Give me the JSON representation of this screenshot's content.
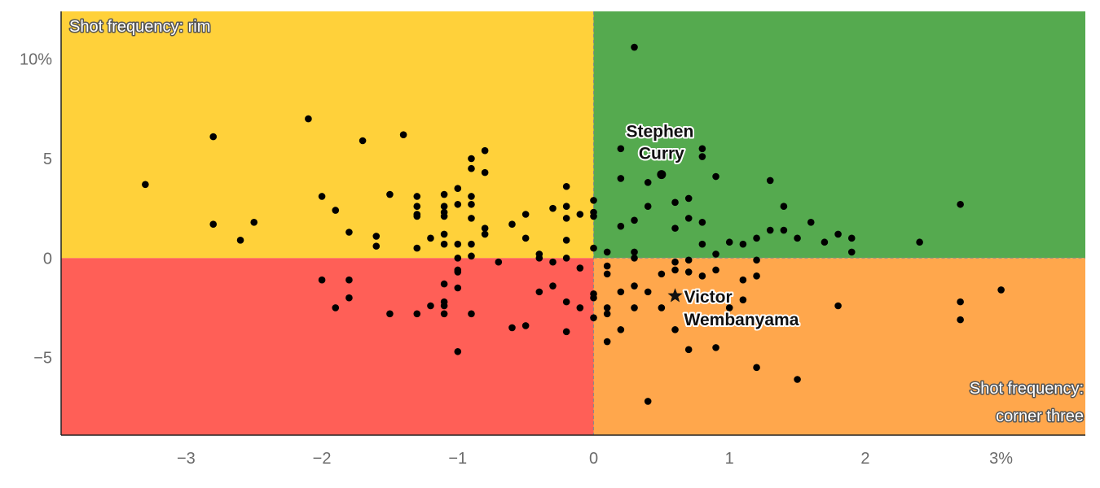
{
  "chart_data": {
    "type": "scatter",
    "xlim": [
      -3.92,
      3.62
    ],
    "ylim": [
      -8.9,
      12.4
    ],
    "x_ticks": [
      -3,
      -2,
      -1,
      0,
      1,
      2,
      3
    ],
    "x_tick_labels": [
      "−3",
      "−2",
      "−1",
      "0",
      "1",
      "2",
      "3%"
    ],
    "y_ticks": [
      -5,
      0,
      5,
      10
    ],
    "y_tick_labels": [
      "−5",
      "0",
      "5",
      "10%"
    ],
    "quadrant_colors": {
      "top_left": "#ffd13a",
      "top_right": "#55aa4f",
      "bottom_left": "#ff5f57",
      "bottom_right": "#ffa74c"
    },
    "corner_labels": {
      "top_left": "Shot frequency: rim",
      "bottom_right_line1": "Shot frequency:",
      "bottom_right_line2": "corner three"
    },
    "highlights": [
      {
        "name_line1": "Stephen",
        "name_line2": "Curry",
        "x": 0.5,
        "y": 4.2,
        "marker": "circle"
      },
      {
        "name_line1": "Victor",
        "name_line2": "Wembanyama",
        "x": 0.6,
        "y": -1.9,
        "marker": "star"
      }
    ],
    "points": [
      [
        -3.3,
        3.7
      ],
      [
        -2.8,
        6.1
      ],
      [
        -2.8,
        1.7
      ],
      [
        -2.6,
        0.9
      ],
      [
        -2.5,
        1.8
      ],
      [
        -2.1,
        7.0
      ],
      [
        -2.0,
        3.1
      ],
      [
        -2.0,
        -1.1
      ],
      [
        -1.9,
        2.4
      ],
      [
        -1.9,
        -2.5
      ],
      [
        -1.8,
        1.3
      ],
      [
        -1.8,
        -1.1
      ],
      [
        -1.8,
        -2.0
      ],
      [
        -1.7,
        5.9
      ],
      [
        -1.6,
        1.1
      ],
      [
        -1.6,
        0.6
      ],
      [
        -1.5,
        3.2
      ],
      [
        -1.5,
        -2.8
      ],
      [
        -1.4,
        6.2
      ],
      [
        -1.3,
        3.1
      ],
      [
        -1.3,
        2.6
      ],
      [
        -1.3,
        2.2
      ],
      [
        -1.3,
        2.1
      ],
      [
        -1.3,
        0.5
      ],
      [
        -1.3,
        -2.8
      ],
      [
        -1.2,
        1.0
      ],
      [
        -1.2,
        -2.4
      ],
      [
        -1.1,
        3.2
      ],
      [
        -1.1,
        2.6
      ],
      [
        -1.1,
        2.3
      ],
      [
        -1.1,
        2.1
      ],
      [
        -1.1,
        1.2
      ],
      [
        -1.1,
        0.7
      ],
      [
        -1.1,
        -1.3
      ],
      [
        -1.1,
        -2.2
      ],
      [
        -1.1,
        -2.4
      ],
      [
        -1.1,
        -2.8
      ],
      [
        -1.0,
        3.5
      ],
      [
        -1.0,
        2.7
      ],
      [
        -1.0,
        0.7
      ],
      [
        -1.0,
        0.0
      ],
      [
        -1.0,
        -0.6
      ],
      [
        -1.0,
        -0.7
      ],
      [
        -1.0,
        -1.5
      ],
      [
        -1.0,
        -4.7
      ],
      [
        -0.9,
        5.0
      ],
      [
        -0.9,
        4.5
      ],
      [
        -0.9,
        3.1
      ],
      [
        -0.9,
        2.7
      ],
      [
        -0.9,
        2.0
      ],
      [
        -0.9,
        0.7
      ],
      [
        -0.9,
        0.1
      ],
      [
        -0.9,
        -2.8
      ],
      [
        -0.8,
        5.4
      ],
      [
        -0.8,
        4.3
      ],
      [
        -0.8,
        1.5
      ],
      [
        -0.8,
        1.2
      ],
      [
        -0.7,
        -0.2
      ],
      [
        -0.6,
        1.7
      ],
      [
        -0.6,
        -3.5
      ],
      [
        -0.5,
        2.2
      ],
      [
        -0.5,
        1.0
      ],
      [
        -0.5,
        -3.4
      ],
      [
        -0.4,
        0.2
      ],
      [
        -0.4,
        0.0
      ],
      [
        -0.4,
        -1.7
      ],
      [
        -0.3,
        2.5
      ],
      [
        -0.3,
        -0.2
      ],
      [
        -0.3,
        -1.4
      ],
      [
        -0.2,
        3.6
      ],
      [
        -0.2,
        2.6
      ],
      [
        -0.2,
        2.0
      ],
      [
        -0.2,
        0.9
      ],
      [
        -0.2,
        0.0
      ],
      [
        -0.2,
        -2.2
      ],
      [
        -0.2,
        -3.7
      ],
      [
        -0.1,
        2.2
      ],
      [
        -0.1,
        -0.5
      ],
      [
        -0.1,
        -2.5
      ],
      [
        0.0,
        2.9
      ],
      [
        0.0,
        2.3
      ],
      [
        0.0,
        2.1
      ],
      [
        0.0,
        0.5
      ],
      [
        0.0,
        -1.8
      ],
      [
        0.0,
        -2.0
      ],
      [
        0.0,
        -3.0
      ],
      [
        0.1,
        0.3
      ],
      [
        0.1,
        -0.4
      ],
      [
        0.1,
        -0.8
      ],
      [
        0.1,
        -2.5
      ],
      [
        0.1,
        -2.8
      ],
      [
        0.1,
        -4.2
      ],
      [
        0.2,
        5.5
      ],
      [
        0.2,
        4.0
      ],
      [
        0.2,
        1.6
      ],
      [
        0.2,
        -1.7
      ],
      [
        0.2,
        -3.6
      ],
      [
        0.3,
        10.6
      ],
      [
        0.3,
        1.9
      ],
      [
        0.3,
        0.3
      ],
      [
        0.3,
        0.0
      ],
      [
        0.3,
        -1.4
      ],
      [
        0.3,
        -2.5
      ],
      [
        0.4,
        3.8
      ],
      [
        0.4,
        2.6
      ],
      [
        0.4,
        -1.7
      ],
      [
        0.4,
        -7.2
      ],
      [
        0.5,
        4.2
      ],
      [
        0.5,
        -0.8
      ],
      [
        0.5,
        -2.5
      ],
      [
        0.6,
        2.8
      ],
      [
        0.6,
        1.5
      ],
      [
        0.6,
        -0.2
      ],
      [
        0.6,
        -0.6
      ],
      [
        0.6,
        -3.6
      ],
      [
        0.7,
        3.0
      ],
      [
        0.7,
        2.0
      ],
      [
        0.7,
        -0.1
      ],
      [
        0.7,
        -0.7
      ],
      [
        0.7,
        -4.6
      ],
      [
        0.8,
        5.5
      ],
      [
        0.8,
        5.1
      ],
      [
        0.8,
        1.8
      ],
      [
        0.8,
        0.7
      ],
      [
        0.8,
        -0.9
      ],
      [
        0.9,
        4.1
      ],
      [
        0.9,
        0.2
      ],
      [
        0.9,
        -0.6
      ],
      [
        0.9,
        -4.5
      ],
      [
        1.0,
        0.8
      ],
      [
        1.0,
        -2.5
      ],
      [
        1.1,
        0.7
      ],
      [
        1.1,
        -1.1
      ],
      [
        1.1,
        -2.1
      ],
      [
        1.2,
        1.0
      ],
      [
        1.2,
        -0.1
      ],
      [
        1.2,
        -0.9
      ],
      [
        1.2,
        -5.5
      ],
      [
        1.3,
        3.9
      ],
      [
        1.3,
        1.4
      ],
      [
        1.4,
        2.6
      ],
      [
        1.4,
        1.4
      ],
      [
        1.5,
        1.0
      ],
      [
        1.5,
        -6.1
      ],
      [
        1.6,
        1.8
      ],
      [
        1.7,
        0.8
      ],
      [
        1.8,
        1.2
      ],
      [
        1.8,
        -2.4
      ],
      [
        1.9,
        1.0
      ],
      [
        1.9,
        0.3
      ],
      [
        2.4,
        0.8
      ],
      [
        2.7,
        2.7
      ],
      [
        2.7,
        -2.2
      ],
      [
        2.7,
        -3.1
      ],
      [
        3.0,
        -1.6
      ]
    ]
  }
}
